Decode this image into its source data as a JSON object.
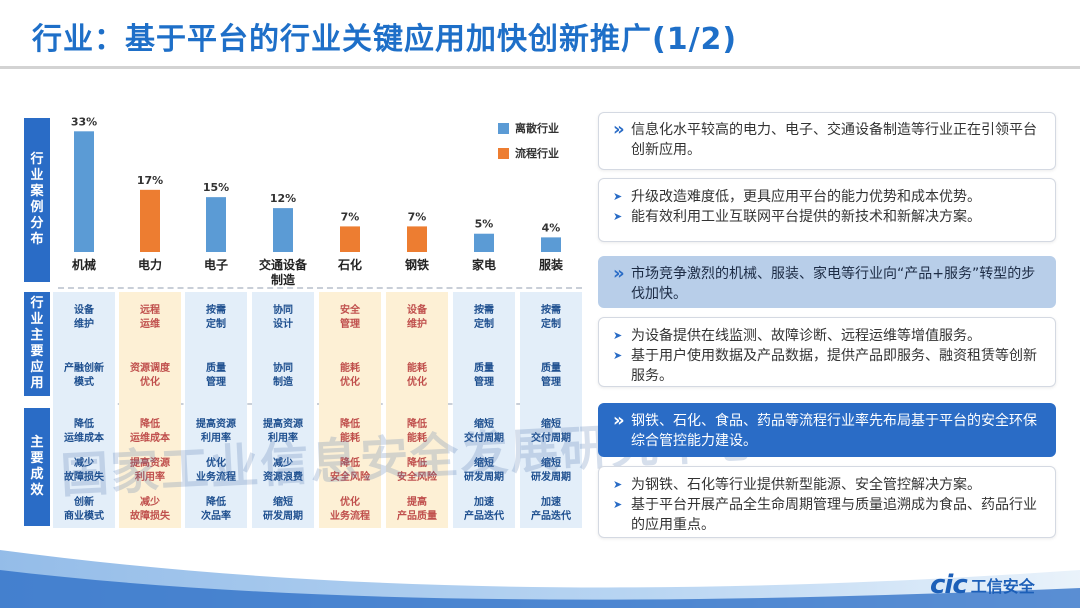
{
  "title": "行业：基于平台的行业关键应用加快创新推广(1/2)",
  "side_labels": {
    "distribution": "行业案例分布",
    "applications": "行业主要应用",
    "results": "主要成效"
  },
  "colors": {
    "discrete": "#5b9bd5",
    "process": "#ed7d31",
    "accent": "#2a6cc6"
  },
  "chart_data": {
    "type": "bar",
    "categories": [
      "机械",
      "电力",
      "电子",
      "交通设备\n制造",
      "石化",
      "钢铁",
      "家电",
      "服装"
    ],
    "values": [
      33,
      17,
      15,
      12,
      7,
      7,
      5,
      4
    ],
    "value_labels": [
      "33%",
      "17%",
      "15%",
      "12%",
      "7%",
      "7%",
      "5%",
      "4%"
    ],
    "series_of_category": [
      "离散行业",
      "流程行业",
      "离散行业",
      "离散行业",
      "流程行业",
      "流程行业",
      "离散行业",
      "离散行业"
    ],
    "legend": [
      "离散行业",
      "流程行业"
    ],
    "legend_position": "top-right",
    "ylim": [
      0,
      35
    ],
    "grid": false
  },
  "applications": [
    [
      "设备\n维护",
      "产融创新\n模式"
    ],
    [
      "远程\n运维",
      "资源调度\n优化"
    ],
    [
      "按需\n定制",
      "质量\n管理"
    ],
    [
      "协同\n设计",
      "协同\n制造"
    ],
    [
      "安全\n管理",
      "能耗\n优化"
    ],
    [
      "设备\n维护",
      "能耗\n优化"
    ],
    [
      "按需\n定制",
      "质量\n管理"
    ],
    [
      "按需\n定制",
      "质量\n管理"
    ]
  ],
  "results": [
    [
      "降低\n运维成本",
      "减少\n故障损失",
      "创新\n商业模式"
    ],
    [
      "降低\n运维成本",
      "提高资源\n利用率",
      "减少\n故障损失"
    ],
    [
      "提高资源\n利用率",
      "优化\n业务流程",
      "降低\n次品率"
    ],
    [
      "提高资源\n利用率",
      "减少\n资源浪费",
      "缩短\n研发周期"
    ],
    [
      "降低\n能耗",
      "降低\n安全风险",
      "优化\n业务流程"
    ],
    [
      "降低\n能耗",
      "降低\n安全风险",
      "提高\n产品质量"
    ],
    [
      "缩短\n交付周期",
      "缩短\n研发周期",
      "加速\n产品迭代"
    ],
    [
      "缩短\n交付周期",
      "缩短\n研发周期",
      "加速\n产品迭代"
    ]
  ],
  "watermark": "国家工业信息安全发展研究中心",
  "right_boxes": [
    {
      "style": "light",
      "marker": "double",
      "lines": [
        "信息化水平较高的电力、电子、交通设备制造等行业正在引领平台创新应用。"
      ]
    },
    {
      "style": "light",
      "marker": "single",
      "lines": [
        "升级改造难度低，更具应用平台的能力优势和成本优势。",
        "能有效利用工业互联网平台提供的新技术和新解决方案。"
      ]
    },
    {
      "style": "hl",
      "marker": "double",
      "lines": [
        "市场竞争激烈的机械、服装、家电等行业向“产品+服务”转型的步伐加快。"
      ]
    },
    {
      "style": "light",
      "marker": "single",
      "lines": [
        "为设备提供在线监测、故障诊断、远程运维等增值服务。",
        "基于用户使用数据及产品数据，提供产品即服务、融资租赁等创新服务。"
      ]
    },
    {
      "style": "dark",
      "marker": "double",
      "lines": [
        "钢铁、石化、食品、药品等流程行业率先布局基于平台的安全环保综合管控能力建设。"
      ]
    },
    {
      "style": "light",
      "marker": "single",
      "lines": [
        "为钢铁、石化等行业提供新型能源、安全管控解决方案。",
        "基于平台开展产品全生命周期管理与质量追溯成为食品、药品行业的应用重点。"
      ]
    }
  ],
  "logo": {
    "mark": "cic",
    "text": "工信安全"
  }
}
